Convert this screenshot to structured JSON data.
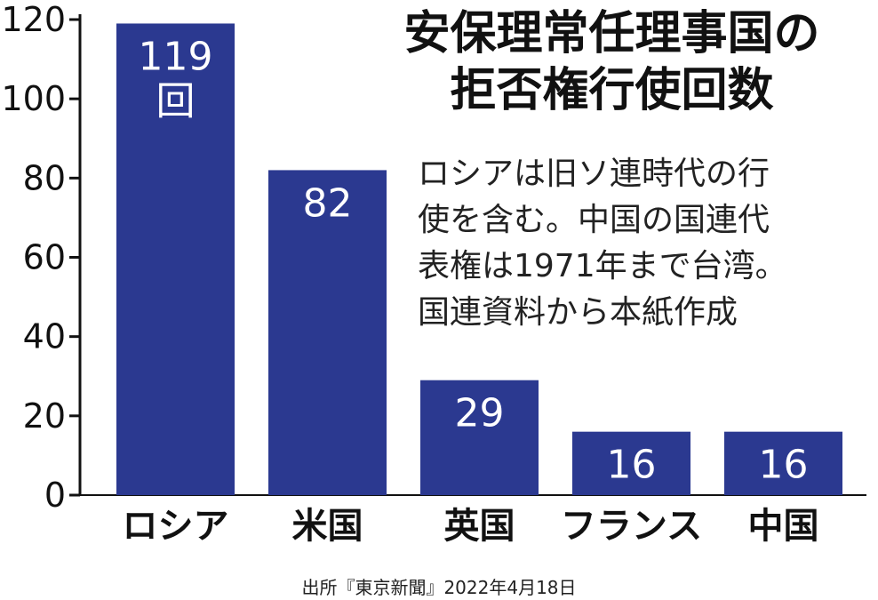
{
  "chart_data": {
    "type": "bar",
    "title": "安保理常任理事国の\n拒否権行使回数",
    "categories": [
      "ロシア",
      "米国",
      "英国",
      "フランス",
      "中国"
    ],
    "values": [
      119,
      82,
      29,
      16,
      16
    ],
    "value_labels": [
      "119\n回",
      "82",
      "29",
      "16",
      "16"
    ],
    "ylim": [
      0,
      120
    ],
    "yticks": [
      0,
      20,
      40,
      60,
      80,
      100,
      120
    ],
    "xlabel": "",
    "ylabel": "",
    "grid": false,
    "legend": "none",
    "bar_color": "#2B3990",
    "annotation": "ロシアは旧ソ連時代の行\n使を含む。中国の国連代\n表権は1971年まで台湾。\n国連資料から本紙作成"
  },
  "source": "出所『東京新聞』2022年4月18日"
}
